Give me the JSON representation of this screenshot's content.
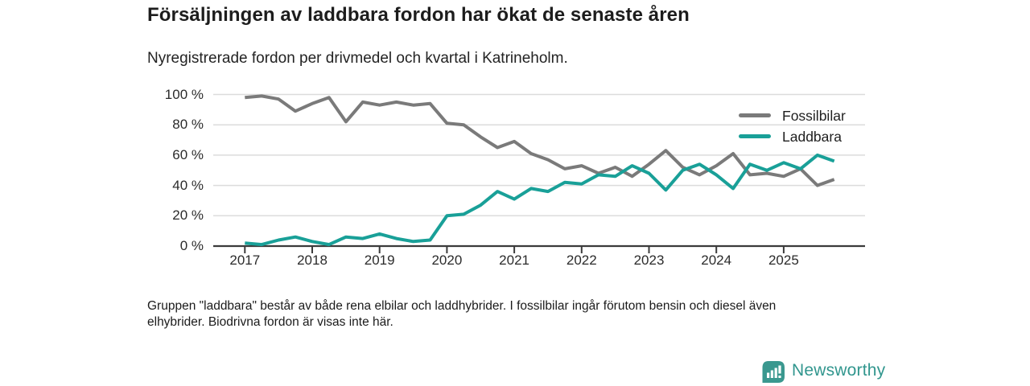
{
  "header": {
    "title": "Försäljningen av laddbara fordon har ökat de senaste åren",
    "subtitle": "Nyregistrerade fordon per drivmedel och kvartal i Katrineholm."
  },
  "legend": [
    {
      "label": "Fossilbilar",
      "color": "#7a7a7a"
    },
    {
      "label": "Laddbara",
      "color": "#19a098"
    }
  ],
  "footer": {
    "line1": "Gruppen \"laddbara\" består av både rena elbilar och laddhybrider. I fossilbilar ingår förutom bensin och diesel även",
    "line2": "elhybrider. Biodrivna fordon är visas inte här."
  },
  "logo": {
    "text": "Newsworthy",
    "color": "#31968e",
    "badge_color": "#3a988f",
    "icon": "bar-chart-speech-bubble-icon"
  },
  "colors": {
    "grid": "#dcdcdc",
    "axis": "#3b3b3b",
    "tick_label": "#2b2b2b",
    "background": "#ffffff"
  },
  "chart_data": {
    "type": "line",
    "title": "Försäljningen av laddbara fordon har ökat de senaste åren",
    "subtitle": "Nyregistrerade fordon per drivmedel och kvartal i Katrineholm.",
    "xlabel": "",
    "ylabel": "",
    "unit": "%",
    "frequency": "quarterly",
    "grid": true,
    "legend_position": "top-right",
    "ylim": [
      0,
      100
    ],
    "categories": [
      "2017Q1",
      "2017Q2",
      "2017Q3",
      "2017Q4",
      "2018Q1",
      "2018Q2",
      "2018Q3",
      "2018Q4",
      "2019Q1",
      "2019Q2",
      "2019Q3",
      "2019Q4",
      "2020Q1",
      "2020Q2",
      "2020Q3",
      "2020Q4",
      "2021Q1",
      "2021Q2",
      "2021Q3",
      "2021Q4",
      "2022Q1",
      "2022Q2",
      "2022Q3",
      "2022Q4",
      "2023Q1",
      "2023Q2",
      "2023Q3",
      "2023Q4",
      "2024Q1",
      "2024Q2",
      "2024Q3",
      "2024Q4",
      "2025Q1",
      "2025Q2",
      "2025Q3",
      "2025Q4"
    ],
    "series": [
      {
        "name": "Fossilbilar",
        "color": "#7a7a7a",
        "values": [
          98,
          99,
          97,
          89,
          94,
          98,
          82,
          95,
          93,
          95,
          93,
          94,
          81,
          80,
          72,
          65,
          69,
          61,
          57,
          51,
          53,
          48,
          52,
          46,
          54,
          63,
          52,
          47,
          53,
          61,
          47,
          48,
          46,
          51,
          40,
          44
        ]
      },
      {
        "name": "Laddbara",
        "color": "#19a098",
        "values": [
          2,
          1,
          4,
          6,
          3,
          1,
          6,
          5,
          8,
          5,
          3,
          4,
          20,
          21,
          27,
          36,
          31,
          38,
          36,
          42,
          41,
          47,
          46,
          53,
          48,
          37,
          50,
          54,
          47,
          38,
          54,
          50,
          55,
          51,
          60,
          56
        ]
      }
    ],
    "y_ticks": [
      {
        "label": "0 %",
        "value": 0
      },
      {
        "label": "20 %",
        "value": 20
      },
      {
        "label": "40 %",
        "value": 40
      },
      {
        "label": "60 %",
        "value": 60
      },
      {
        "label": "80 %",
        "value": 80
      },
      {
        "label": "100 %",
        "value": 100
      }
    ],
    "x_ticks": [
      {
        "label": "2017"
      },
      {
        "label": "2018"
      },
      {
        "label": "2019"
      },
      {
        "label": "2020"
      },
      {
        "label": "2021"
      },
      {
        "label": "2022"
      },
      {
        "label": "2023"
      },
      {
        "label": "2024"
      },
      {
        "label": "2025"
      }
    ]
  }
}
